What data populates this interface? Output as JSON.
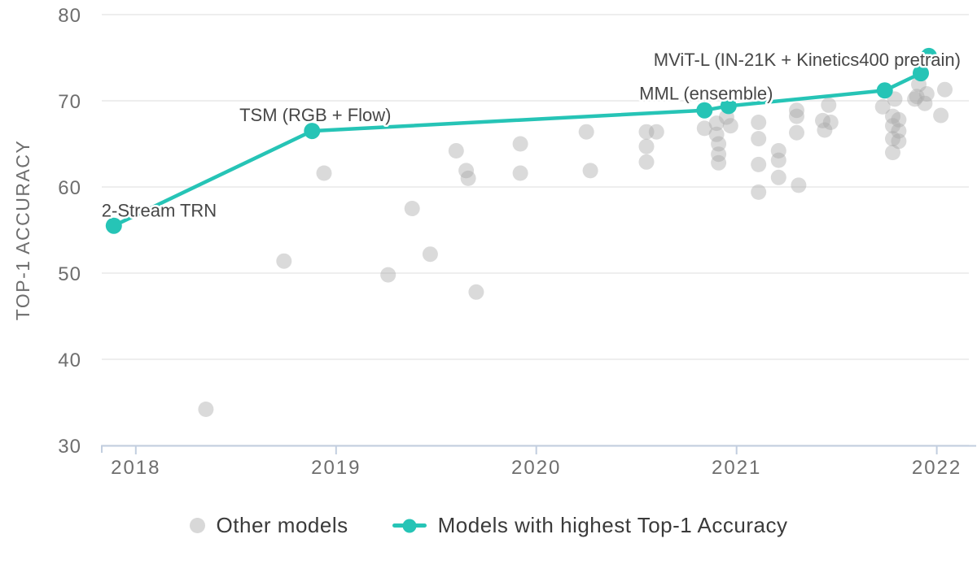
{
  "chart_data": {
    "type": "scatter",
    "title": "",
    "xlabel": "",
    "ylabel": "TOP-1 ACCURACY",
    "x_ticks": [
      "2018",
      "2019",
      "2020",
      "2021",
      "2022"
    ],
    "x_tick_values": [
      2018,
      2019,
      2020,
      2021,
      2022
    ],
    "y_ticks": [
      30,
      40,
      50,
      60,
      70,
      80
    ],
    "xlim": [
      2017.83,
      2022.16
    ],
    "ylim": [
      30,
      80
    ],
    "grid": "horizontal",
    "legend_position": "bottom-center",
    "colors": {
      "highlight": "#26c4b6",
      "other_dot": "#a8a8a8",
      "legend_other_dot": "#d8d8d8",
      "axis_line": "#c2cedf",
      "gridline": "#e8e8e8",
      "tick_text": "#6e6e6e",
      "annotation_text": "#474747",
      "legend_text": "#3a3a3a"
    },
    "series": [
      {
        "name": "Other models",
        "type": "scatter",
        "points": [
          [
            2018.35,
            34.2
          ],
          [
            2018.74,
            51.4
          ],
          [
            2018.94,
            61.6
          ],
          [
            2019.26,
            49.8
          ],
          [
            2019.38,
            57.5
          ],
          [
            2019.47,
            52.2
          ],
          [
            2019.6,
            64.2
          ],
          [
            2019.65,
            61.9
          ],
          [
            2019.66,
            61.0
          ],
          [
            2019.7,
            47.8
          ],
          [
            2019.92,
            65.0
          ],
          [
            2019.92,
            61.6
          ],
          [
            2020.25,
            66.4
          ],
          [
            2020.27,
            61.9
          ],
          [
            2020.55,
            66.4
          ],
          [
            2020.6,
            66.4
          ],
          [
            2020.55,
            64.7
          ],
          [
            2020.55,
            62.9
          ],
          [
            2020.84,
            66.8
          ],
          [
            2020.9,
            67.4
          ],
          [
            2020.9,
            66.1
          ],
          [
            2020.91,
            65.0
          ],
          [
            2020.91,
            63.8
          ],
          [
            2020.91,
            62.8
          ],
          [
            2020.95,
            68.1
          ],
          [
            2020.97,
            67.1
          ],
          [
            2021.11,
            67.5
          ],
          [
            2021.11,
            65.6
          ],
          [
            2021.11,
            62.6
          ],
          [
            2021.11,
            59.4
          ],
          [
            2021.21,
            64.2
          ],
          [
            2021.21,
            63.1
          ],
          [
            2021.21,
            61.1
          ],
          [
            2021.3,
            68.9
          ],
          [
            2021.3,
            68.2
          ],
          [
            2021.3,
            66.3
          ],
          [
            2021.31,
            60.2
          ],
          [
            2021.46,
            69.5
          ],
          [
            2021.43,
            67.7
          ],
          [
            2021.47,
            67.5
          ],
          [
            2021.44,
            66.6
          ],
          [
            2021.73,
            69.3
          ],
          [
            2021.79,
            70.2
          ],
          [
            2021.78,
            68.2
          ],
          [
            2021.81,
            67.8
          ],
          [
            2021.78,
            67.1
          ],
          [
            2021.81,
            66.5
          ],
          [
            2021.78,
            65.6
          ],
          [
            2021.81,
            65.3
          ],
          [
            2021.78,
            64.0
          ],
          [
            2021.91,
            71.9
          ],
          [
            2021.9,
            70.5
          ],
          [
            2021.95,
            70.8
          ],
          [
            2021.89,
            70.2
          ],
          [
            2021.94,
            69.7
          ],
          [
            2022.04,
            71.3
          ],
          [
            2022.02,
            68.3
          ]
        ]
      },
      {
        "name": "Models with highest Top-1 Accuracy",
        "type": "line+scatter",
        "points": [
          [
            2017.89,
            55.5
          ],
          [
            2018.88,
            66.5
          ],
          [
            2020.84,
            68.9
          ],
          [
            2020.96,
            69.4
          ],
          [
            2021.74,
            71.2
          ],
          [
            2021.92,
            73.2
          ],
          [
            2021.96,
            75.2
          ]
        ],
        "annotations": [
          {
            "text": "2-Stream TRN",
            "x": 2017.89,
            "y": 55.5,
            "anchor": "start",
            "dx": -15,
            "dy": -11
          },
          {
            "text": "TSM (RGB + Flow)",
            "x": 2018.88,
            "y": 66.5,
            "anchor": "middle",
            "dx": 4,
            "dy": -12
          },
          {
            "text": "MML (ensemble)",
            "x": 2020.84,
            "y": 68.9,
            "anchor": "middle",
            "dx": 2,
            "dy": -13
          },
          {
            "text": "MViT-L (IN-21K + Kinetics400 pretrain)",
            "x": 2021.92,
            "y": 73.2,
            "anchor": "end",
            "dx": 49,
            "dy": -9
          }
        ]
      }
    ],
    "legend": [
      {
        "label": "Other models",
        "marker": "dot"
      },
      {
        "label": "Models with highest Top-1 Accuracy",
        "marker": "line-dot"
      }
    ]
  }
}
